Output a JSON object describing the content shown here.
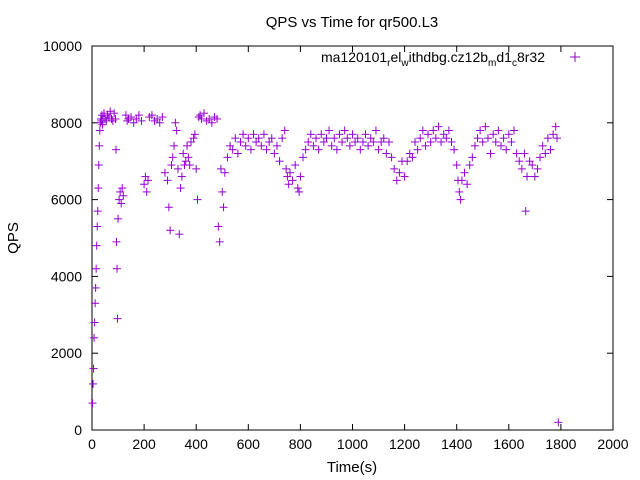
{
  "chart_data": {
    "type": "scatter",
    "title": "QPS vs Time for qr500.L3",
    "xlabel": "Time(s)",
    "ylabel": "QPS",
    "xlim": [
      0,
      2000
    ],
    "ylim": [
      0,
      10000
    ],
    "xticks": [
      "0",
      "200",
      "400",
      "600",
      "800",
      "1000",
      "1200",
      "1400",
      "1600",
      "1800",
      "2000"
    ],
    "yticks": [
      "0",
      "2000",
      "4000",
      "6000",
      "8000",
      "10000"
    ],
    "legend_position": "top-right",
    "series": [
      {
        "name": "ma120101_rel_withdbg.cz12b_md1_c8r32",
        "legend_parts": {
          "base": "ma120101",
          "sub1": "r",
          "mid1": "el",
          "sub2": "w",
          "mid2": "ithdbg.cz12b",
          "sub3": "m",
          "mid3": "d1",
          "sub4": "c",
          "tail": "8r32"
        },
        "color": "#9400d3",
        "marker": "plus",
        "points": [
          [
            2,
            700
          ],
          [
            4,
            1200
          ],
          [
            6,
            1600
          ],
          [
            8,
            2400
          ],
          [
            10,
            2800
          ],
          [
            12,
            3300
          ],
          [
            14,
            3700
          ],
          [
            16,
            4200
          ],
          [
            18,
            4800
          ],
          [
            20,
            5300
          ],
          [
            22,
            5700
          ],
          [
            24,
            6300
          ],
          [
            26,
            6900
          ],
          [
            28,
            7400
          ],
          [
            30,
            7800
          ],
          [
            32,
            8000
          ],
          [
            34,
            8100
          ],
          [
            36,
            8050
          ],
          [
            38,
            8200
          ],
          [
            40,
            7950
          ],
          [
            42,
            8100
          ],
          [
            46,
            8250
          ],
          [
            50,
            8100
          ],
          [
            55,
            8050
          ],
          [
            60,
            8200
          ],
          [
            65,
            8150
          ],
          [
            70,
            8300
          ],
          [
            75,
            8100
          ],
          [
            80,
            8050
          ],
          [
            85,
            8250
          ],
          [
            90,
            8100
          ],
          [
            92,
            7300
          ],
          [
            94,
            4900
          ],
          [
            96,
            4200
          ],
          [
            98,
            2900
          ],
          [
            100,
            5500
          ],
          [
            104,
            6000
          ],
          [
            108,
            6200
          ],
          [
            112,
            5900
          ],
          [
            116,
            6300
          ],
          [
            120,
            6100
          ],
          [
            130,
            8200
          ],
          [
            135,
            8050
          ],
          [
            140,
            8100
          ],
          [
            150,
            8150
          ],
          [
            160,
            8000
          ],
          [
            170,
            8100
          ],
          [
            180,
            8200
          ],
          [
            190,
            8050
          ],
          [
            200,
            6400
          ],
          [
            205,
            6600
          ],
          [
            210,
            6200
          ],
          [
            215,
            6500
          ],
          [
            220,
            8150
          ],
          [
            230,
            8200
          ],
          [
            240,
            8050
          ],
          [
            250,
            8100
          ],
          [
            260,
            8000
          ],
          [
            270,
            8150
          ],
          [
            280,
            6700
          ],
          [
            290,
            6500
          ],
          [
            295,
            5800
          ],
          [
            300,
            5200
          ],
          [
            305,
            6900
          ],
          [
            310,
            7100
          ],
          [
            315,
            7400
          ],
          [
            320,
            8000
          ],
          [
            325,
            7800
          ],
          [
            330,
            6800
          ],
          [
            335,
            5100
          ],
          [
            340,
            6300
          ],
          [
            345,
            6600
          ],
          [
            350,
            7200
          ],
          [
            355,
            6900
          ],
          [
            360,
            7000
          ],
          [
            365,
            7400
          ],
          [
            370,
            7100
          ],
          [
            375,
            6900
          ],
          [
            380,
            7500
          ],
          [
            390,
            7600
          ],
          [
            395,
            7700
          ],
          [
            400,
            6800
          ],
          [
            405,
            6000
          ],
          [
            410,
            8150
          ],
          [
            415,
            8200
          ],
          [
            420,
            8100
          ],
          [
            430,
            8250
          ],
          [
            440,
            8050
          ],
          [
            450,
            8100
          ],
          [
            460,
            8000
          ],
          [
            470,
            8150
          ],
          [
            480,
            8100
          ],
          [
            485,
            5300
          ],
          [
            490,
            4900
          ],
          [
            495,
            6800
          ],
          [
            500,
            6200
          ],
          [
            505,
            5800
          ],
          [
            510,
            6700
          ],
          [
            520,
            7100
          ],
          [
            530,
            7400
          ],
          [
            540,
            7300
          ],
          [
            550,
            7600
          ],
          [
            560,
            7200
          ],
          [
            570,
            7500
          ],
          [
            580,
            7700
          ],
          [
            590,
            7400
          ],
          [
            600,
            7600
          ],
          [
            610,
            7300
          ],
          [
            620,
            7700
          ],
          [
            630,
            7500
          ],
          [
            640,
            7600
          ],
          [
            650,
            7400
          ],
          [
            660,
            7700
          ],
          [
            670,
            7300
          ],
          [
            680,
            7500
          ],
          [
            690,
            7600
          ],
          [
            700,
            7200
          ],
          [
            710,
            7400
          ],
          [
            720,
            7000
          ],
          [
            730,
            7600
          ],
          [
            740,
            7800
          ],
          [
            745,
            6800
          ],
          [
            750,
            6600
          ],
          [
            755,
            6400
          ],
          [
            760,
            6700
          ],
          [
            770,
            6500
          ],
          [
            780,
            6900
          ],
          [
            790,
            6300
          ],
          [
            795,
            6200
          ],
          [
            800,
            6600
          ],
          [
            810,
            7100
          ],
          [
            820,
            7300
          ],
          [
            830,
            7500
          ],
          [
            840,
            7700
          ],
          [
            850,
            7400
          ],
          [
            860,
            7600
          ],
          [
            870,
            7300
          ],
          [
            880,
            7700
          ],
          [
            890,
            7500
          ],
          [
            900,
            7600
          ],
          [
            910,
            7800
          ],
          [
            920,
            7400
          ],
          [
            930,
            7600
          ],
          [
            940,
            7300
          ],
          [
            950,
            7700
          ],
          [
            960,
            7500
          ],
          [
            970,
            7800
          ],
          [
            980,
            7600
          ],
          [
            990,
            7400
          ],
          [
            1000,
            7700
          ],
          [
            1010,
            7500
          ],
          [
            1020,
            7600
          ],
          [
            1030,
            7300
          ],
          [
            1040,
            7500
          ],
          [
            1050,
            7700
          ],
          [
            1060,
            7400
          ],
          [
            1070,
            7600
          ],
          [
            1080,
            7500
          ],
          [
            1090,
            7800
          ],
          [
            1100,
            7300
          ],
          [
            1110,
            7500
          ],
          [
            1120,
            7600
          ],
          [
            1130,
            7200
          ],
          [
            1140,
            7500
          ],
          [
            1150,
            7100
          ],
          [
            1160,
            6800
          ],
          [
            1170,
            6500
          ],
          [
            1180,
            6700
          ],
          [
            1190,
            7000
          ],
          [
            1200,
            6600
          ],
          [
            1210,
            7000
          ],
          [
            1220,
            7200
          ],
          [
            1230,
            7100
          ],
          [
            1240,
            7500
          ],
          [
            1250,
            7300
          ],
          [
            1260,
            7600
          ],
          [
            1270,
            7800
          ],
          [
            1280,
            7400
          ],
          [
            1290,
            7700
          ],
          [
            1300,
            7500
          ],
          [
            1310,
            7800
          ],
          [
            1320,
            7600
          ],
          [
            1330,
            7900
          ],
          [
            1340,
            7500
          ],
          [
            1350,
            7700
          ],
          [
            1360,
            7600
          ],
          [
            1370,
            7800
          ],
          [
            1380,
            7500
          ],
          [
            1390,
            7300
          ],
          [
            1400,
            6900
          ],
          [
            1405,
            6500
          ],
          [
            1410,
            6200
          ],
          [
            1415,
            6000
          ],
          [
            1420,
            6500
          ],
          [
            1430,
            6700
          ],
          [
            1440,
            6400
          ],
          [
            1450,
            6900
          ],
          [
            1460,
            7100
          ],
          [
            1470,
            7400
          ],
          [
            1480,
            7600
          ],
          [
            1490,
            7800
          ],
          [
            1500,
            7500
          ],
          [
            1510,
            7900
          ],
          [
            1520,
            7600
          ],
          [
            1530,
            7200
          ],
          [
            1540,
            7700
          ],
          [
            1550,
            7500
          ],
          [
            1560,
            7800
          ],
          [
            1570,
            7400
          ],
          [
            1580,
            7600
          ],
          [
            1590,
            7300
          ],
          [
            1600,
            7700
          ],
          [
            1610,
            7500
          ],
          [
            1620,
            7800
          ],
          [
            1630,
            7200
          ],
          [
            1640,
            7000
          ],
          [
            1650,
            6800
          ],
          [
            1660,
            7200
          ],
          [
            1665,
            5700
          ],
          [
            1670,
            6600
          ],
          [
            1680,
            7000
          ],
          [
            1690,
            6900
          ],
          [
            1700,
            6600
          ],
          [
            1710,
            6800
          ],
          [
            1720,
            7100
          ],
          [
            1730,
            7400
          ],
          [
            1740,
            7200
          ],
          [
            1750,
            7600
          ],
          [
            1760,
            7300
          ],
          [
            1770,
            7700
          ],
          [
            1780,
            7900
          ],
          [
            1785,
            7600
          ],
          [
            1790,
            200
          ]
        ]
      }
    ]
  }
}
